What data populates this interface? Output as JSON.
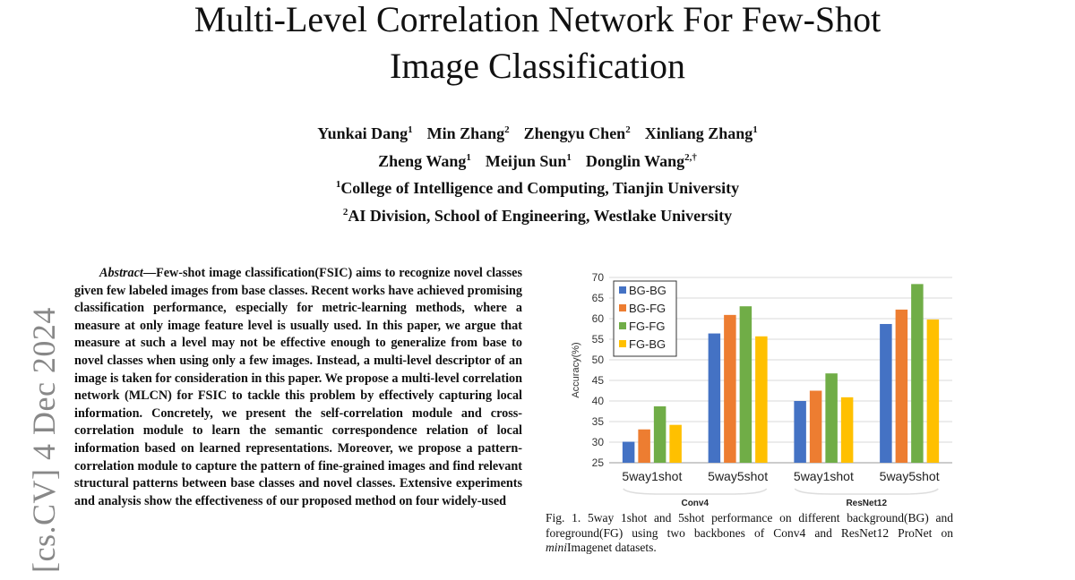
{
  "paper": {
    "title_line1": "Multi-Level Correlation Network For Few-Shot",
    "title_line2": "Image Classification",
    "authors": [
      {
        "name": "Yunkai Dang",
        "aff": "1"
      },
      {
        "name": "Min Zhang",
        "aff": "2"
      },
      {
        "name": "Zhengyu Chen",
        "aff": "2"
      },
      {
        "name": "Xinliang Zhang",
        "aff": "1"
      },
      {
        "name": "Zheng Wang",
        "aff": "1"
      },
      {
        "name": "Meijun Sun",
        "aff": "1"
      },
      {
        "name": "Donglin Wang",
        "aff": "2,†"
      }
    ],
    "affiliations": [
      {
        "num": "1",
        "text": "College of Intelligence and Computing, Tianjin University"
      },
      {
        "num": "2",
        "text": "AI Division, School of Engineering, Westlake University"
      }
    ],
    "arxiv_stamp": "[cs.CV]  4 Dec 2024",
    "abstract_label": "Abstract",
    "abstract_text": "—Few-shot image classification(FSIC) aims to recognize novel classes given few labeled images from base classes. Recent works have achieved promising classification performance, especially for metric-learning methods, where a measure at only image feature level is usually used. In this paper, we argue that measure at such a level may not be effective enough to generalize from base to novel classes when using only a few images. Instead, a multi-level descriptor of an image is taken for consideration in this paper. We propose a multi-level correlation network (MLCN) for FSIC to tackle this problem by effectively capturing local information. Concretely, we present the self-correlation module and cross-correlation module to learn the semantic correspondence relation of local information based on learned representations. Moreover, we propose a pattern-correlation module to capture the pattern of fine-grained images and find relevant structural patterns between base classes and novel classes. Extensive experiments and analysis show the effectiveness of our proposed method on four widely-used",
    "caption_prefix": "Fig. 1.   5way 1shot and 5shot performance on different background(BG) and foreground(FG) using two backbones of Conv4 and ResNet12 ProNet on ",
    "caption_italic": "mini",
    "caption_suffix": "Imagenet datasets."
  },
  "chart_data": {
    "type": "bar",
    "ylabel": "Accuracy(%)",
    "ylim": [
      25,
      70
    ],
    "yticks": [
      25,
      30,
      35,
      40,
      45,
      50,
      55,
      60,
      65,
      70
    ],
    "grid": true,
    "legend_placement": "top-left",
    "categories": [
      "5way1shot",
      "5way5shot",
      "5way1shot",
      "5way5shot"
    ],
    "groups": [
      {
        "label": "Conv4",
        "categories": [
          0,
          1
        ]
      },
      {
        "label": "ResNet12",
        "categories": [
          2,
          3
        ]
      }
    ],
    "series": [
      {
        "name": "BG-BG",
        "color": "#4472C4",
        "values": [
          30.1,
          56.4,
          40.0,
          58.7
        ]
      },
      {
        "name": "BG-FG",
        "color": "#ED7D31",
        "values": [
          33.1,
          60.9,
          42.5,
          62.2
        ]
      },
      {
        "name": "FG-FG",
        "color": "#70AD47",
        "values": [
          38.7,
          63.0,
          46.7,
          68.4
        ]
      },
      {
        "name": "FG-BG",
        "color": "#FFC000",
        "values": [
          34.2,
          55.7,
          40.9,
          59.8
        ]
      }
    ]
  }
}
